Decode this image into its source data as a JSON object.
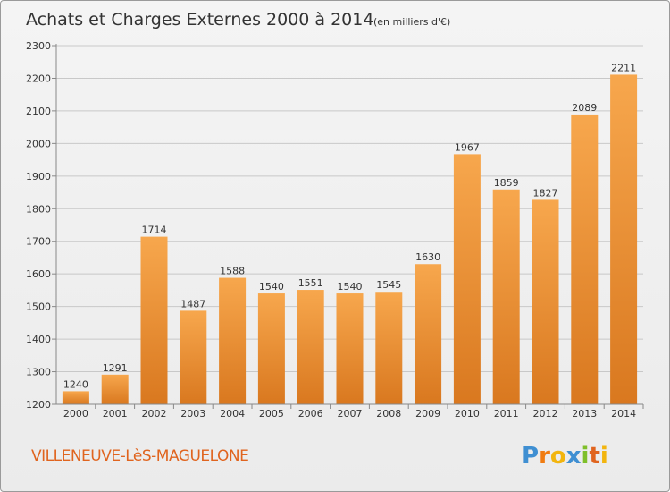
{
  "header": {
    "title": "Achats et Charges Externes 2000 à 2014",
    "subtitle": "(en milliers d'€)"
  },
  "footer": {
    "place": "VILLENEUVE-LèS-MAGUELONE",
    "logo": "Proxiti"
  },
  "colors": {
    "bar_light": "#f7a74d",
    "bar_dark": "#d9781f",
    "grid": "#c8c8c8",
    "accent": "#e0641e"
  },
  "chart_data": {
    "type": "bar",
    "title": "Achats et Charges Externes 2000 à 2014",
    "subtitle": "(en milliers d'€)",
    "categories": [
      "2000",
      "2001",
      "2002",
      "2003",
      "2004",
      "2005",
      "2006",
      "2007",
      "2008",
      "2009",
      "2010",
      "2011",
      "2012",
      "2013",
      "2014"
    ],
    "values": [
      1240,
      1291,
      1714,
      1487,
      1588,
      1540,
      1551,
      1540,
      1545,
      1630,
      1967,
      1859,
      1827,
      2089,
      2211
    ],
    "ylim": [
      1200,
      2300
    ],
    "yticks": [
      1200,
      1300,
      1400,
      1500,
      1600,
      1700,
      1800,
      1900,
      2000,
      2100,
      2200,
      2300
    ],
    "grid": true
  }
}
